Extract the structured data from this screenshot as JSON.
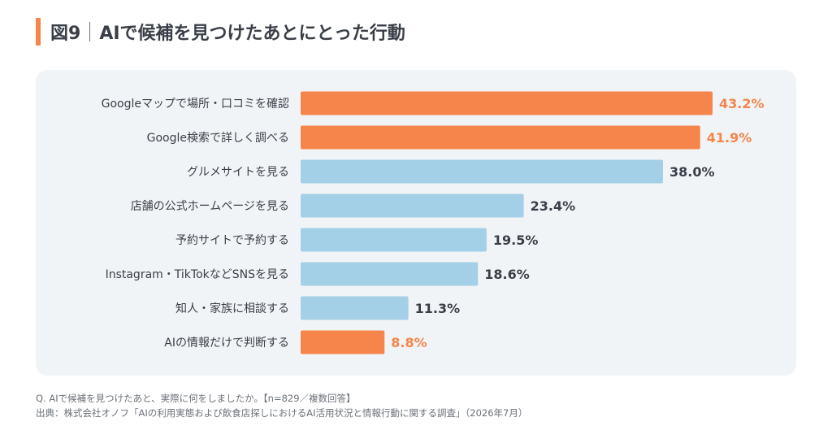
{
  "header": {
    "figure_number": "図9",
    "title": "AIで候補を見つけたあとにとった行動"
  },
  "colors": {
    "accent": "#f5854a",
    "highlight_bar": "#f5854a",
    "normal_bar": "#a3d0e6",
    "normal_text": "#3a3f47",
    "panel_bg": "#f1f4f7"
  },
  "chart_data": {
    "type": "bar",
    "orientation": "horizontal",
    "title": "AIで候補を見つけたあとにとった行動",
    "unit": "%",
    "xlim": [
      0,
      50
    ],
    "grid": false,
    "legend": "none",
    "categories": [
      "Googleマップで場所・口コミを確認",
      "Google検索で詳しく調べる",
      "グルメサイトを見る",
      "店舗の公式ホームページを見る",
      "予約サイトで予約する",
      "Instagram・TikTokなどSNSを見る",
      "知人・家族に相談する",
      "AIの情報だけで判断する"
    ],
    "values": [
      43.2,
      41.9,
      38.0,
      23.4,
      19.5,
      18.6,
      11.3,
      8.8
    ],
    "value_labels": [
      "43.2%",
      "41.9%",
      "38.0%",
      "23.4%",
      "19.5%",
      "18.6%",
      "11.3%",
      "8.8%"
    ],
    "highlighted": [
      true,
      true,
      false,
      false,
      false,
      false,
      false,
      true
    ]
  },
  "footnotes": {
    "question": "Q. AIで候補を見つけたあと、実際に何をしましたか。【n=829／複数回答】",
    "source": "出典：株式会社オノフ「AIの利用実態および飲食店探しにおけるAI活用状況と情報行動に関する調査」（2026年7月）"
  }
}
